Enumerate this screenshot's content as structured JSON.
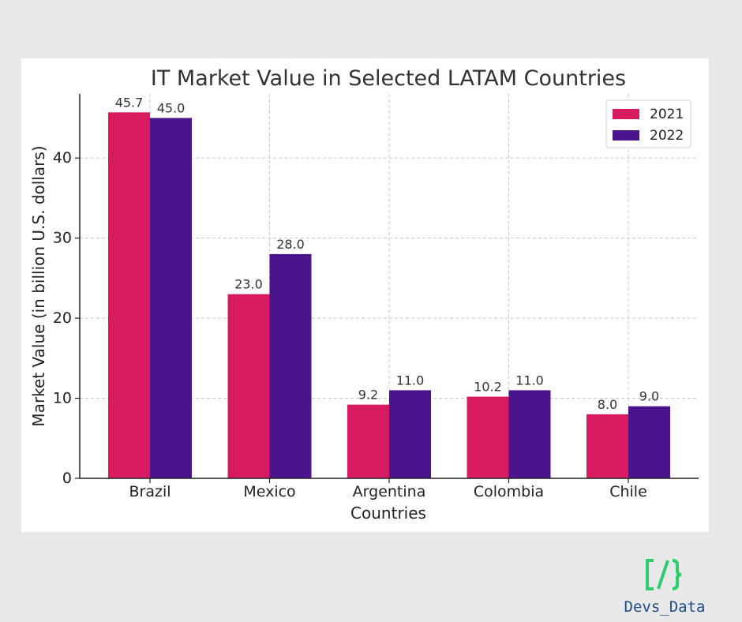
{
  "chart_data": {
    "type": "bar",
    "title": "IT Market Value in Selected LATAM Countries",
    "xlabel": "Countries",
    "ylabel": "Market Value (in billion U.S. dollars)",
    "categories": [
      "Brazil",
      "Mexico",
      "Argentina",
      "Colombia",
      "Chile"
    ],
    "series": [
      {
        "name": "2021",
        "color": "#d81b60",
        "values": [
          45.7,
          23.0,
          9.2,
          10.2,
          8.0
        ]
      },
      {
        "name": "2022",
        "color": "#4a148c",
        "values": [
          45.0,
          28.0,
          11.0,
          11.0,
          9.0
        ]
      }
    ],
    "ylim": [
      0,
      48
    ],
    "yticks": [
      0,
      10,
      20,
      30,
      40
    ],
    "grid": true,
    "legend": "top-right",
    "label_decimals": 1
  },
  "brand": {
    "logo_icon": "code-brackets-slash-icon",
    "logo_color": "#2ecc71",
    "name": "Devs_Data",
    "name_color": "#1f4c8f"
  }
}
